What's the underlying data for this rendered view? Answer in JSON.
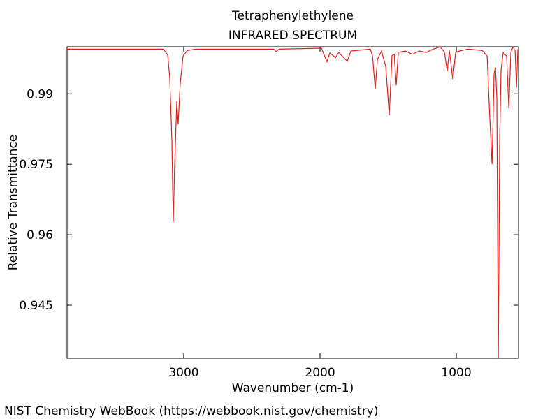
{
  "chart_data": {
    "type": "line",
    "title": "Tetraphenylethylene",
    "subtitle": "INFRARED SPECTRUM",
    "x_label": "Wavenumber (cm-1)",
    "y_label": "Relative Transmittance",
    "source": "NIST Chemistry WebBook (https://webbook.nist.gov/chemistry)",
    "x": [
      3856,
      3500,
      3150,
      3118,
      3103,
      3087,
      3077,
      3067,
      3051,
      3041,
      3026,
      3005,
      2974,
      2913,
      2500,
      2340,
      2323,
      2300,
      1990,
      1949,
      1928,
      1887,
      1862,
      1800,
      1774,
      1631,
      1615,
      1595,
      1579,
      1549,
      1518,
      1492,
      1472,
      1456,
      1441,
      1426,
      1374,
      1323,
      1272,
      1221,
      1169,
      1118,
      1087,
      1067,
      1051,
      1026,
      1005,
      964,
      913,
      810,
      774,
      759,
      738,
      723,
      713,
      703,
      692,
      682,
      672,
      656,
      631,
      615,
      600,
      585,
      569,
      559,
      549
    ],
    "series": [
      {
        "name": "Relative Transmittance",
        "color": "#e0201b",
        "values": [
          0.9995,
          0.9995,
          0.9995,
          0.9983,
          0.9936,
          0.9802,
          0.9627,
          0.9743,
          0.9884,
          0.9835,
          0.9921,
          0.998,
          0.9992,
          0.9995,
          0.9995,
          0.9995,
          0.999,
          0.9995,
          0.9997,
          0.9968,
          0.9987,
          0.9977,
          0.9988,
          0.9969,
          0.9991,
          0.9995,
          0.998,
          0.991,
          0.9973,
          0.9991,
          0.9958,
          0.9854,
          0.9981,
          0.9984,
          0.9918,
          0.9988,
          0.9991,
          0.9984,
          0.9991,
          0.9988,
          0.9995,
          1.0,
          0.9988,
          0.9948,
          0.9992,
          0.9931,
          0.9988,
          0.9992,
          0.9995,
          0.9992,
          0.998,
          0.9876,
          0.975,
          0.9944,
          0.9956,
          0.9891,
          0.9337,
          0.9802,
          0.9951,
          0.9988,
          0.998,
          0.9869,
          0.9988,
          1.0,
          0.9992,
          0.9913,
          0.9995
        ]
      }
    ],
    "xlim": [
      3856,
      544
    ],
    "ylim": [
      0.9337,
      1.0
    ],
    "xticks": [
      3000,
      2000,
      1000
    ],
    "yticks": [
      0.99,
      0.975,
      0.96,
      0.945
    ]
  }
}
